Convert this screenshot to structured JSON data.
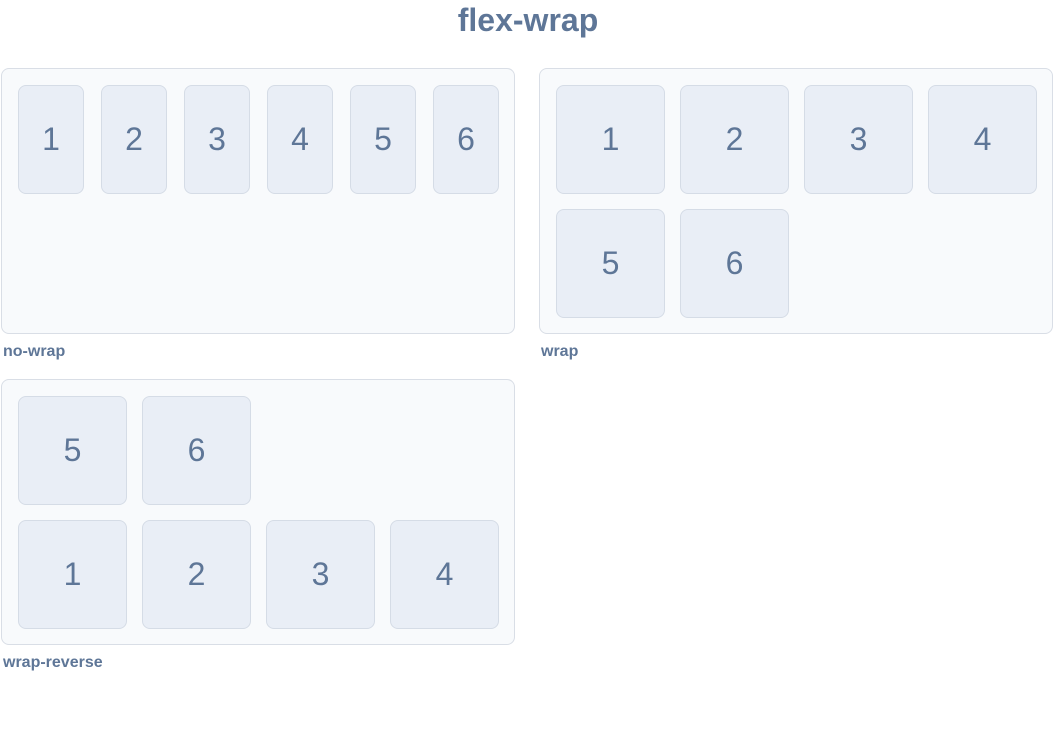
{
  "title": "flex-wrap",
  "demos": {
    "nowrap": {
      "label": "no-wrap",
      "items": [
        "1",
        "2",
        "3",
        "4",
        "5",
        "6"
      ]
    },
    "wrap": {
      "label": "wrap",
      "items": [
        "1",
        "2",
        "3",
        "4",
        "5",
        "6"
      ]
    },
    "wrap_reverse": {
      "label": "wrap-reverse",
      "items": [
        "5",
        "6",
        "1",
        "2",
        "3",
        "4"
      ]
    }
  },
  "colors": {
    "text": "#5e7697",
    "panel_bg": "#f8fafc",
    "panel_border": "#d9dee6",
    "box_bg": "#e9eef6",
    "box_border": "#d5dce6"
  }
}
